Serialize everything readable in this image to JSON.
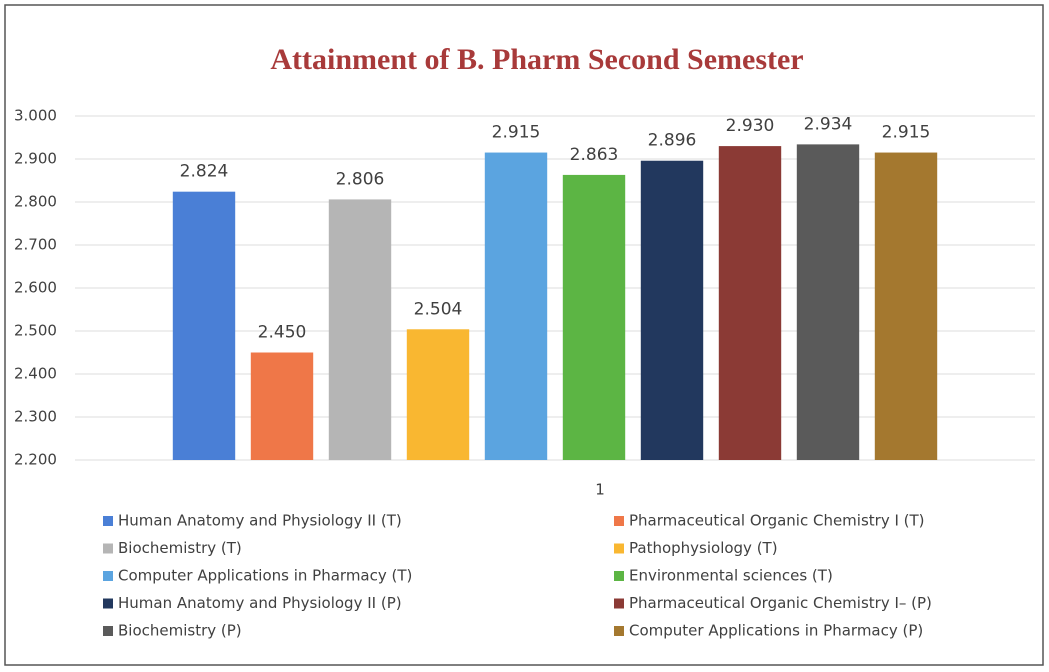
{
  "chart_data": {
    "type": "bar",
    "title": "Attainment of B. Pharm Second Semester",
    "categories": [
      "1"
    ],
    "series": [
      {
        "name": "Human Anatomy and Physiology II (T)",
        "color": "#4a7fd6",
        "values": [
          2.824
        ],
        "value_labels": [
          "2.824"
        ]
      },
      {
        "name": "Pharmaceutical Organic Chemistry I (T)",
        "color": "#ef7748",
        "values": [
          2.45
        ],
        "value_labels": [
          "2.450"
        ]
      },
      {
        "name": "Biochemistry (T)",
        "color": "#b5b5b5",
        "values": [
          2.806
        ],
        "value_labels": [
          "2.806"
        ]
      },
      {
        "name": "Pathophysiology (T)",
        "color": "#f9b731",
        "values": [
          2.504
        ],
        "value_labels": [
          "2.504"
        ]
      },
      {
        "name": "Computer Applications in Pharmacy (T)",
        "color": "#5ba4e0",
        "values": [
          2.915
        ],
        "value_labels": [
          "2.915"
        ]
      },
      {
        "name": "Environmental sciences (T)",
        "color": "#5cb544",
        "values": [
          2.863
        ],
        "value_labels": [
          "2.863"
        ]
      },
      {
        "name": "Human Anatomy and Physiology II (P)",
        "color": "#22385e",
        "values": [
          2.896
        ],
        "value_labels": [
          "2.896"
        ]
      },
      {
        "name": "Pharmaceutical Organic Chemistry I– (P)",
        "color": "#8b3a35",
        "values": [
          2.93
        ],
        "value_labels": [
          "2.930"
        ]
      },
      {
        "name": "Biochemistry (P)",
        "color": "#5a5a5a",
        "values": [
          2.934
        ],
        "value_labels": [
          "2.934"
        ]
      },
      {
        "name": "Computer Applications in Pharmacy (P)",
        "color": "#a4782f",
        "values": [
          2.915
        ],
        "value_labels": [
          "2.915"
        ]
      }
    ],
    "ylim": [
      2.2,
      3.0
    ],
    "yticks": [
      {
        "value": 2.2,
        "label": "2.200"
      },
      {
        "value": 2.3,
        "label": "2.300"
      },
      {
        "value": 2.4,
        "label": "2.400"
      },
      {
        "value": 2.5,
        "label": "2.500"
      },
      {
        "value": 2.6,
        "label": "2.600"
      },
      {
        "value": 2.7,
        "label": "2.700"
      },
      {
        "value": 2.8,
        "label": "2.800"
      },
      {
        "value": 2.9,
        "label": "2.900"
      },
      {
        "value": 3.0,
        "label": "3.000"
      }
    ],
    "grid": true,
    "legend": "bottom"
  }
}
